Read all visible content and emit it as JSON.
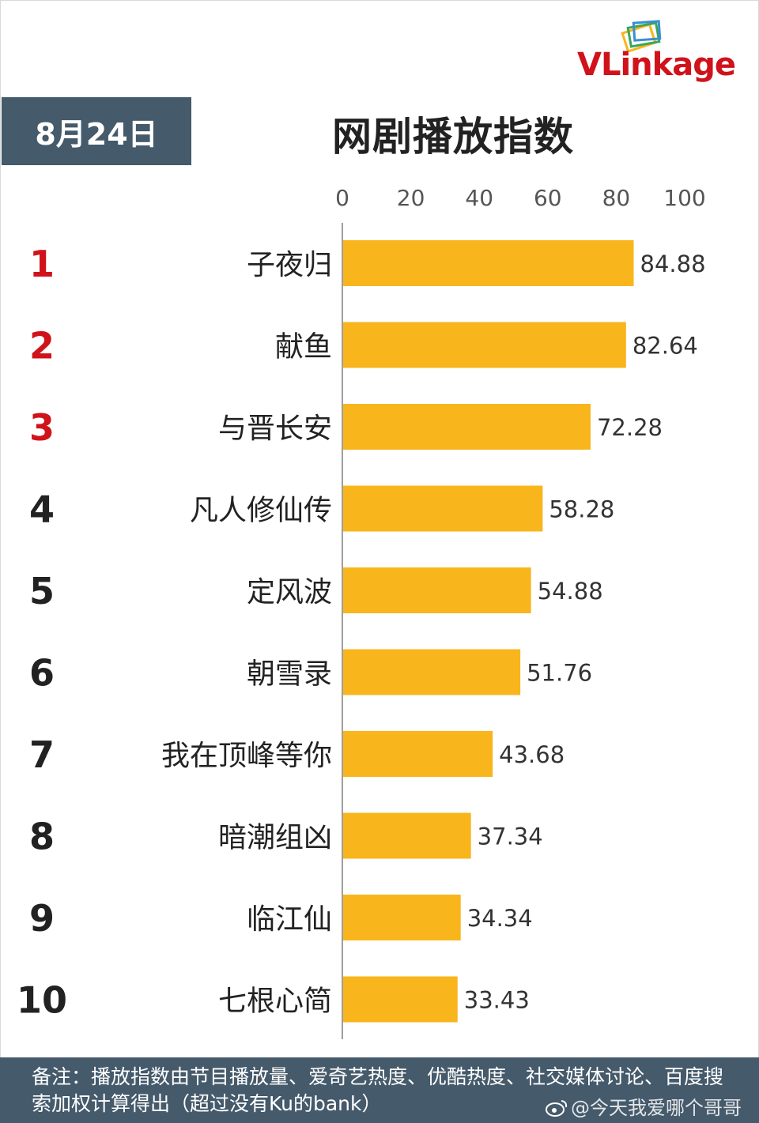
{
  "logo": {
    "text": "VLinkage"
  },
  "date": "8月24日",
  "title": "网剧播放指数",
  "chart_data": {
    "type": "bar",
    "orientation": "horizontal",
    "title": "网剧播放指数",
    "xlim": [
      0,
      100
    ],
    "ticks": [
      "0",
      "20",
      "40",
      "60",
      "80",
      "100"
    ],
    "ranks": [
      "1",
      "2",
      "3",
      "4",
      "5",
      "6",
      "7",
      "8",
      "9",
      "10"
    ],
    "categories": [
      "子夜归",
      "献鱼",
      "与晋长安",
      "凡人修仙传",
      "定风波",
      "朝雪录",
      "我在顶峰等你",
      "暗潮组凶",
      "临江仙",
      "七根心简"
    ],
    "values": [
      84.88,
      82.64,
      72.28,
      58.28,
      54.88,
      51.76,
      43.68,
      37.34,
      34.34,
      33.43
    ],
    "value_labels": [
      "84.88",
      "82.64",
      "72.28",
      "58.28",
      "54.88",
      "51.76",
      "43.68",
      "37.34",
      "34.34",
      "33.43"
    ],
    "bar_color": "#f8b51c",
    "top_rank_color": "#d0121b",
    "rank_color": "#222222"
  },
  "footer": {
    "note": "备注：播放指数由节目播放量、爱奇艺热度、优酷热度、社交媒体讨论、百度搜索加权计算得出（超过没有Ku的bank）"
  },
  "watermark": {
    "text": "@今天我爱哪个哥哥"
  },
  "colors": {
    "header_bg": "#455a6b",
    "brand": "#d0121b"
  }
}
